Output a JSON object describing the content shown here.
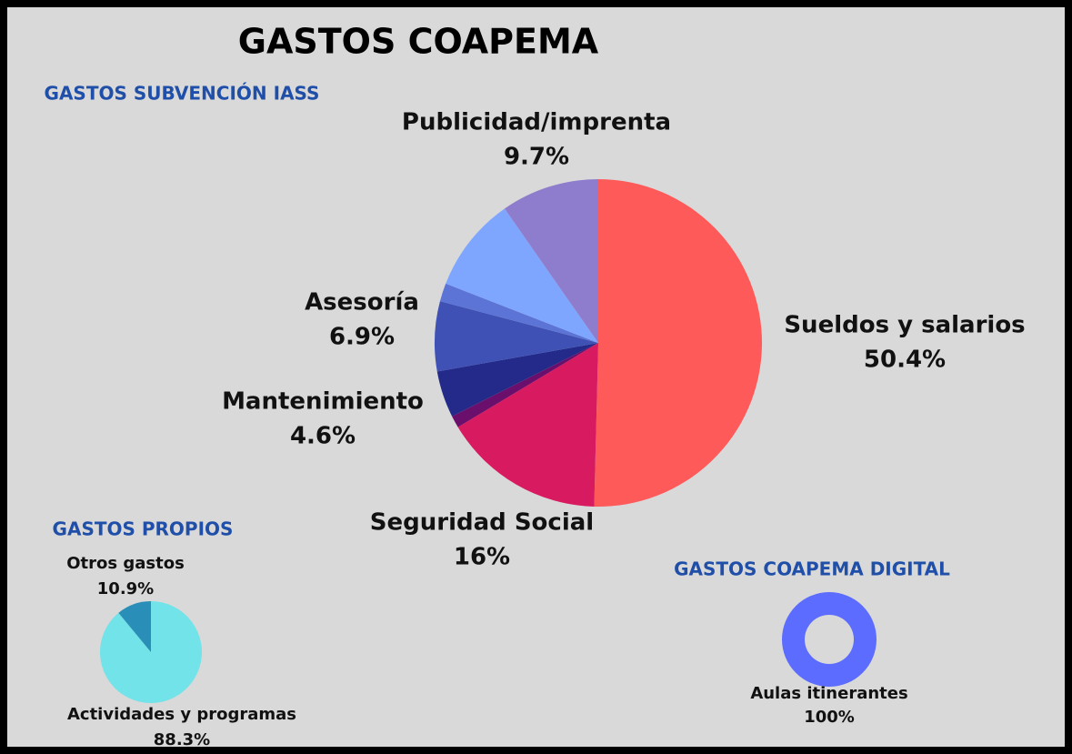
{
  "title": "GASTOS  COAPEMA",
  "chart_data": [
    {
      "type": "pie",
      "title": "GASTOS SUBVENCIÓN IASS",
      "categories": [
        "Sueldos y salarios",
        "Seguridad Social",
        null,
        "Mantenimiento",
        "Asesoría",
        null,
        null,
        "Publicidad/imprenta"
      ],
      "values": [
        50.4,
        16,
        1.2,
        4.6,
        6.9,
        1.8,
        9.4,
        9.7
      ],
      "value_labels": [
        "50.4%",
        "16%",
        null,
        "4.6%",
        "6.9%",
        null,
        null,
        "9.7%"
      ],
      "colors": [
        "#ff5a5a",
        "#d81b60",
        "#6a0f6b",
        "#232a8a",
        "#3f51b5",
        "#5c74d6",
        "#7fa6ff",
        "#8e7ccc"
      ]
    },
    {
      "type": "pie",
      "title": "GASTOS PROPIOS",
      "categories": [
        "Actividades y programas",
        "Otros gastos"
      ],
      "values": [
        88.3,
        10.9
      ],
      "value_labels": [
        "88.3%",
        "10.9%"
      ],
      "colors": [
        "#72e3e8",
        "#2a8fb8"
      ]
    },
    {
      "type": "donut",
      "title": "GASTOS COAPEMA DIGITAL",
      "categories": [
        "Aulas itinerantes"
      ],
      "values": [
        100
      ],
      "value_labels": [
        "100%"
      ],
      "colors": [
        "#5b6cff"
      ]
    }
  ]
}
